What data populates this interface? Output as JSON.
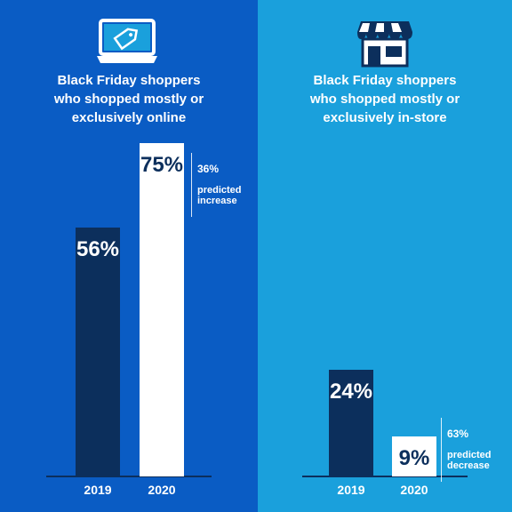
{
  "colors": {
    "left_bg": "#0a5cc4",
    "right_bg": "#1aa0dc",
    "bar_2019": "#0c2f5c",
    "bar_2020": "#ffffff",
    "text_on_bar_2020": "#0c2f5c",
    "white": "#ffffff"
  },
  "icons": {
    "left": "laptop-price-tag-icon",
    "right": "storefront-icon"
  },
  "chart_data": [
    {
      "type": "bar",
      "title": "Black Friday shoppers\nwho shopped mostly or\nexclusively online",
      "categories": [
        "2019",
        "2020"
      ],
      "values": [
        56,
        75
      ],
      "value_labels": [
        "56%",
        "75%"
      ],
      "ylim": [
        0,
        100
      ],
      "annotation": {
        "category": "2020",
        "percent": "36%",
        "text": "predicted\nincrease"
      }
    },
    {
      "type": "bar",
      "title": "Black Friday shoppers\nwho shopped mostly or\nexclusively in-store",
      "categories": [
        "2019",
        "2020"
      ],
      "values": [
        24,
        9
      ],
      "value_labels": [
        "24%",
        "9%"
      ],
      "ylim": [
        0,
        100
      ],
      "annotation": {
        "category": "2020",
        "percent": "63%",
        "text": "predicted\ndecrease"
      }
    }
  ]
}
